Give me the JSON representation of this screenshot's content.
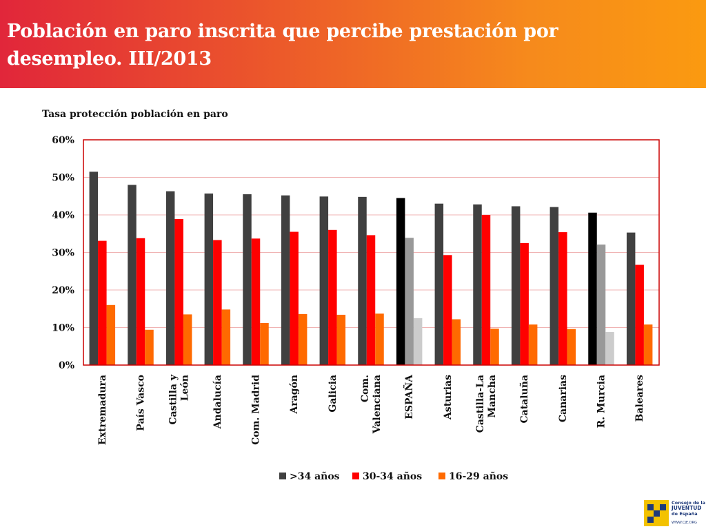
{
  "header": {
    "title_line1": "Población en paro inscrita que percibe prestación por",
    "title_line2": "desempleo. III/2013"
  },
  "colors": {
    "header_start": "#e1263a",
    "header_end": "#fb9a10",
    "series_1": "#404040",
    "series_2": "#ff0000",
    "series_3": "#ff6a00",
    "highlight_1": "#000000",
    "highlight_2": "#999999",
    "highlight_3": "#cccccc",
    "plot_border": "#cc0000",
    "gridline": "#f0b3b3"
  },
  "chart_data": {
    "type": "bar",
    "title": "Tasa protección población en paro",
    "xlabel": "",
    "ylabel": "",
    "ylim": [
      0,
      60
    ],
    "yticks": [
      0,
      10,
      20,
      30,
      40,
      50,
      60
    ],
    "ytick_labels": [
      "0%",
      "10%",
      "20%",
      "30%",
      "40%",
      "50%",
      "60%"
    ],
    "categories": [
      [
        "Extremadura"
      ],
      [
        "País Vasco"
      ],
      [
        "Castilla y",
        "León"
      ],
      [
        "Andalucía"
      ],
      [
        "Com. Madrid"
      ],
      [
        "Aragón"
      ],
      [
        "Galicia"
      ],
      [
        "Com.",
        "Valenciana"
      ],
      [
        "ESPAÑA"
      ],
      [
        "Asturias"
      ],
      [
        "Castilla-La",
        "Mancha"
      ],
      [
        "Cataluña"
      ],
      [
        "Canarias"
      ],
      [
        "R. Murcia"
      ],
      [
        "Baleares"
      ]
    ],
    "highlighted_categories": [
      8,
      13
    ],
    "series": [
      {
        "name": ">34 años",
        "values": [
          51.5,
          48.0,
          46.3,
          45.7,
          45.5,
          45.2,
          44.9,
          44.8,
          44.5,
          43.0,
          42.8,
          42.3,
          42.1,
          40.6,
          35.3
        ]
      },
      {
        "name": "30-34 años",
        "values": [
          33.1,
          33.8,
          38.9,
          33.3,
          33.7,
          35.5,
          36.0,
          34.6,
          33.9,
          29.3,
          40.0,
          32.5,
          35.4,
          32.1,
          26.7
        ]
      },
      {
        "name": "16-29 años",
        "values": [
          16.0,
          9.4,
          13.5,
          14.8,
          11.2,
          13.6,
          13.4,
          13.7,
          12.5,
          12.2,
          9.7,
          10.8,
          9.6,
          8.8,
          10.8
        ]
      }
    ],
    "legend_position": "bottom-center",
    "grid": true
  },
  "logo": {
    "line1": "Consejo de la",
    "line2": "JUVENTUD",
    "line3": "de España",
    "url": "WWW.CJE.ORG"
  }
}
